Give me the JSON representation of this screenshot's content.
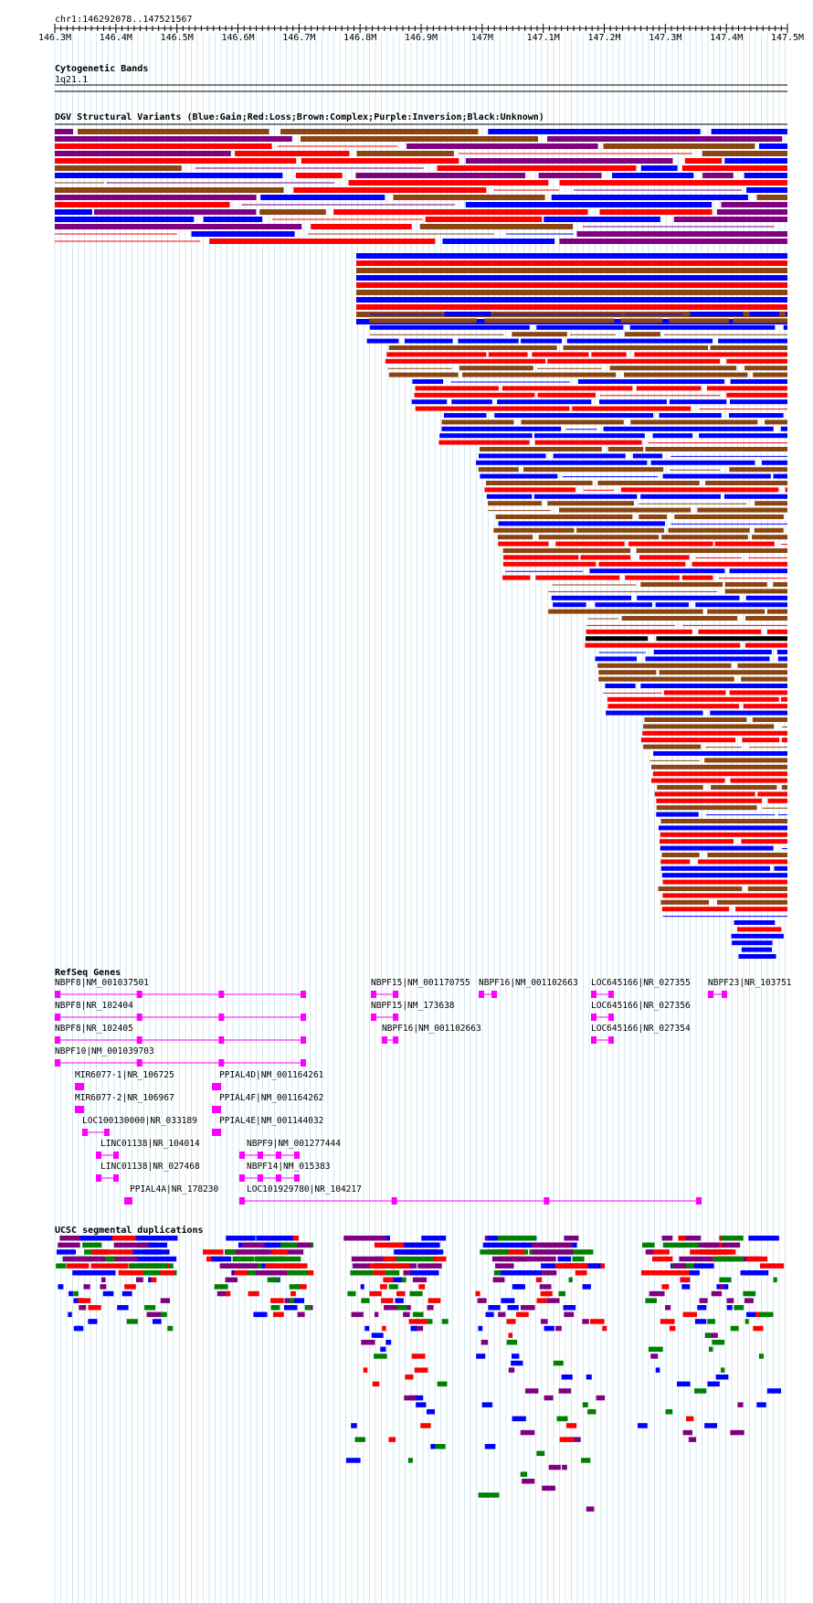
{
  "ruler": {
    "region": "chr1:146292078..147521567",
    "ticks": [
      "146.3M",
      "146.4M",
      "146.5M",
      "146.6M",
      "146.7M",
      "146.8M",
      "146.9M",
      "147M",
      "147.1M",
      "147.2M",
      "147.3M",
      "147.4M",
      "147.5M"
    ]
  },
  "cytoband": {
    "title": "Cytogenetic Bands",
    "band": "1q21.1"
  },
  "dgv": {
    "title": "DGV Structural Variants (Blue:Gain;Red:Loss;Brown:Complex;Purple:Inversion;Black:Unknown)",
    "colors": {
      "gain": "#0000ff",
      "loss": "#ff0000",
      "complex": "#8b4513",
      "inversion": "#800080",
      "unknown": "#000000"
    }
  },
  "refseq": {
    "title": "RefSeq Genes",
    "color": "#ff00ff",
    "genes": [
      "NBPF8|NM_001037501",
      "NBPF8|NR_102404",
      "NBPF8|NR_102405",
      "NBPF10|NM_001039703",
      "MIR6077-1|NR_106725",
      "MIR6077-2|NR_106967",
      "LOC100130000|NR_033189",
      "LINC01138|NR_104014",
      "LINC01138|NR_027468",
      "PPIAL4A|NR_178230",
      "PPIAL4D|NM_001164261",
      "PPIAL4F|NM_001164262",
      "PPIAL4E|NM_001144032",
      "NBPF9|NM_001277444",
      "NBPF14|NM_015383",
      "LOC101929780|NR_104217",
      "NBPF15|NM_001170755",
      "NBPF15|NM_173638",
      "NBPF16|NM_001102663",
      "NBPF16|NM_001102663",
      "LOC645166|NR_027355",
      "LOC645166|NR_027356",
      "LOC645166|NR_027354",
      "NBPF23|NR_103751"
    ]
  },
  "segdup": {
    "title": "UCSC segmental duplications",
    "colors": {
      "a": "#0000ff",
      "b": "#ff0000",
      "c": "#800080",
      "d": "#008000"
    }
  }
}
